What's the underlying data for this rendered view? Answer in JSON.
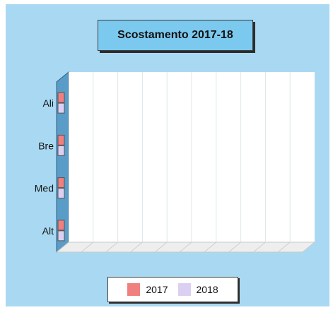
{
  "chart_data": {
    "type": "bar",
    "orientation": "horizontal",
    "title": "Scostamento 2017-18",
    "categories": [
      "Ali",
      "Bre",
      "Med",
      "Alt"
    ],
    "series": [
      {
        "name": "2017",
        "color": "#f08080",
        "values": [
          0,
          0,
          0,
          0
        ]
      },
      {
        "name": "2018",
        "color": "#dcd0f2",
        "values": [
          0,
          0,
          0,
          0
        ]
      }
    ],
    "grid": true,
    "legend_position": "bottom-center",
    "three_d": true
  }
}
